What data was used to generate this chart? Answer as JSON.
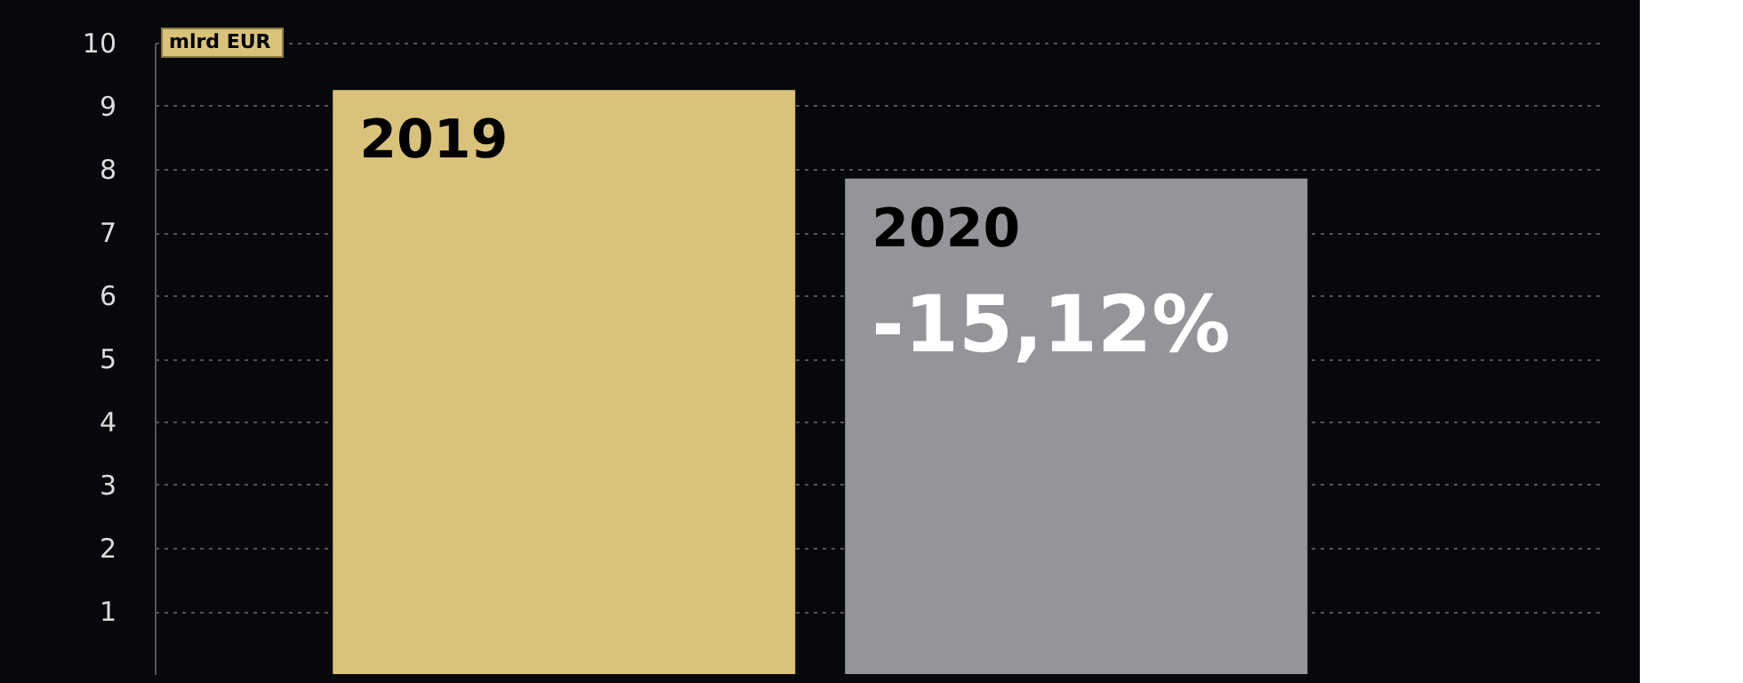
{
  "chart_data": {
    "type": "bar",
    "ylabel": "mlrd EUR",
    "categories": [
      "2019",
      "2020"
    ],
    "values": [
      9.25,
      7.85
    ],
    "colors": [
      "#d9c37a",
      "#939598"
    ],
    "annotations": [
      {
        "text": "-15,12%",
        "x": "2020",
        "y": 7.85
      }
    ],
    "ylim": [
      0,
      10
    ],
    "yticks": [
      1,
      2,
      3,
      4,
      5,
      6,
      7,
      8,
      9,
      10
    ],
    "grid": "y",
    "line_style": "dashed",
    "tick_labels": "y"
  }
}
